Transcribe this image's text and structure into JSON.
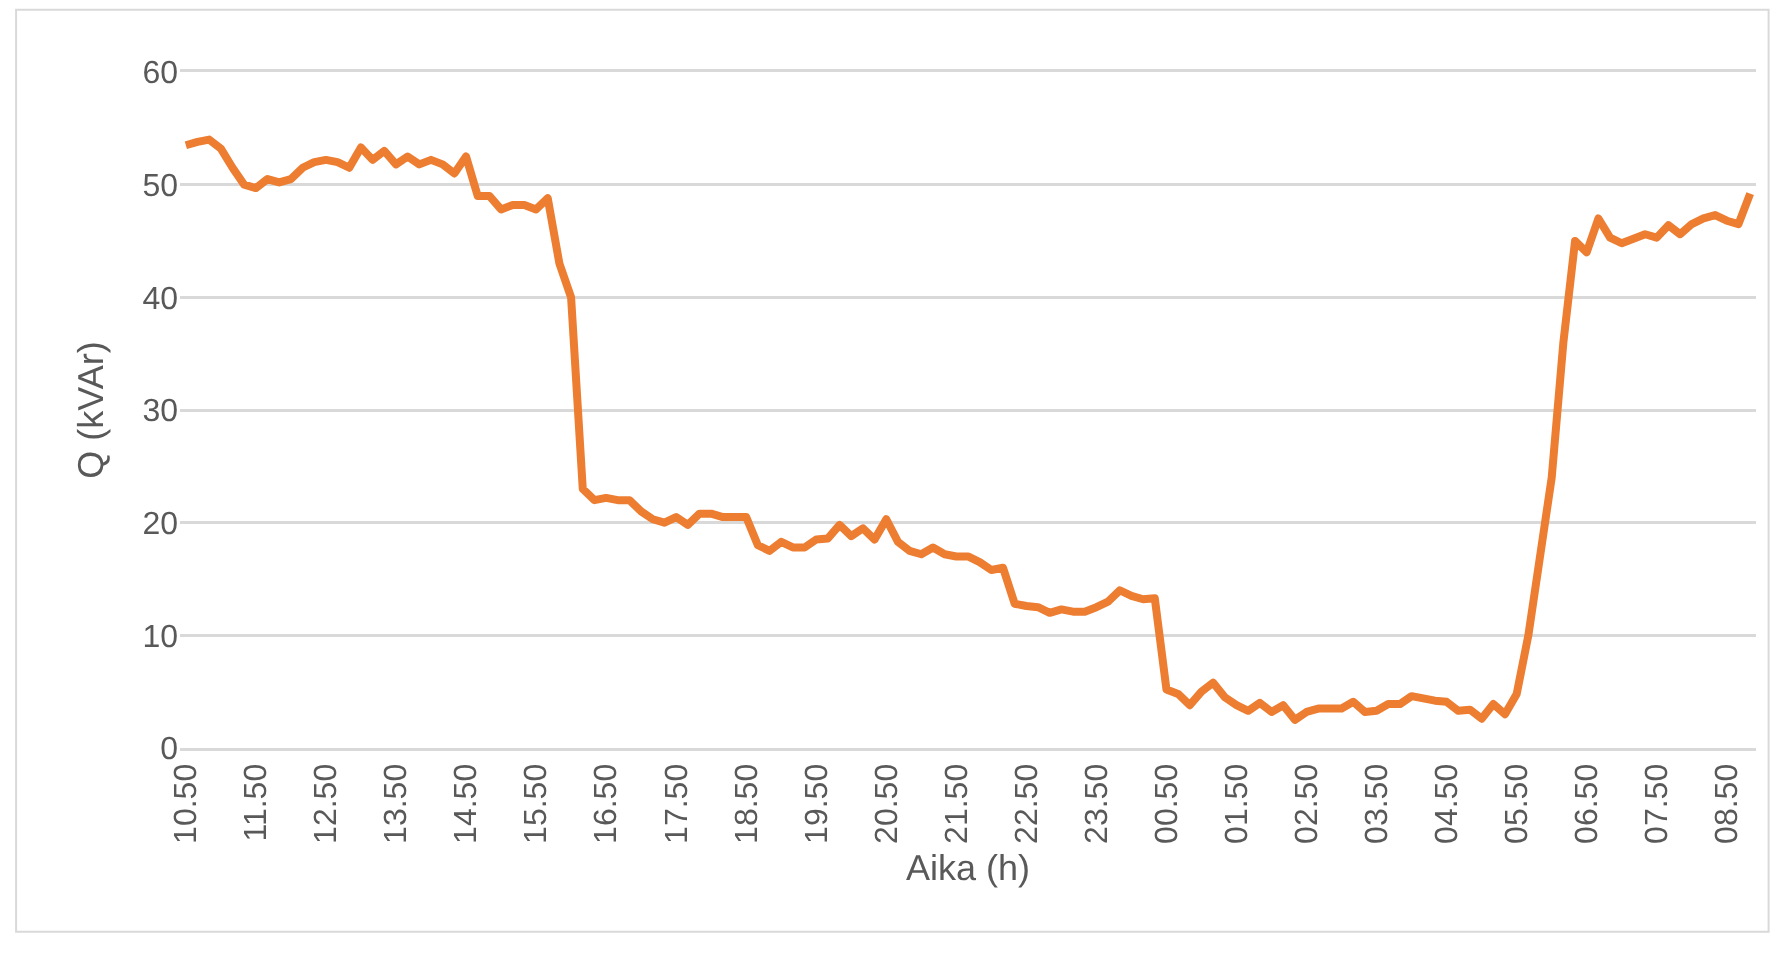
{
  "chart_data": {
    "type": "line",
    "xlabel": "Aika (h)",
    "ylabel": "Q (kVAr)",
    "categories": [
      "10.50",
      null,
      null,
      null,
      null,
      null,
      "11.50",
      null,
      null,
      null,
      null,
      null,
      "12.50",
      null,
      null,
      null,
      null,
      null,
      "13.50",
      null,
      null,
      null,
      null,
      null,
      "14.50",
      null,
      null,
      null,
      null,
      null,
      "15.50",
      null,
      null,
      null,
      null,
      null,
      "16.50",
      null,
      null,
      null,
      null,
      null,
      "17.50",
      null,
      null,
      null,
      null,
      null,
      "18.50",
      null,
      null,
      null,
      null,
      null,
      "19.50",
      null,
      null,
      null,
      null,
      null,
      "20.50",
      null,
      null,
      null,
      null,
      null,
      "21.50",
      null,
      null,
      null,
      null,
      null,
      "22.50",
      null,
      null,
      null,
      null,
      null,
      "23.50",
      null,
      null,
      null,
      null,
      null,
      "00.50",
      null,
      null,
      null,
      null,
      null,
      "01.50",
      null,
      null,
      null,
      null,
      null,
      "02.50",
      null,
      null,
      null,
      null,
      null,
      "03.50",
      null,
      null,
      null,
      null,
      null,
      "04.50",
      null,
      null,
      null,
      null,
      null,
      "05.50",
      null,
      null,
      null,
      null,
      null,
      "06.50",
      null,
      null,
      null,
      null,
      null,
      "07.50",
      null,
      null,
      null,
      null,
      null,
      "08.50",
      null,
      null
    ],
    "series": [
      {
        "color": "#ed7d31",
        "values": [
          53.5,
          53.8,
          54,
          53.2,
          51.5,
          50,
          49.7,
          50.5,
          50.2,
          50.5,
          51.5,
          52,
          52.2,
          52,
          51.5,
          53.3,
          52.2,
          53,
          51.8,
          52.5,
          51.8,
          52.2,
          51.8,
          51,
          52.5,
          49,
          49,
          47.8,
          48.2,
          48.2,
          47.8,
          48.8,
          43,
          40,
          23,
          22,
          22.2,
          22,
          22,
          21,
          20.3,
          20,
          20.5,
          19.8,
          20.8,
          20.8,
          20.5,
          20.5,
          20.5,
          18,
          17.5,
          18.3,
          17.8,
          17.8,
          18.5,
          18.6,
          19.8,
          18.8,
          19.5,
          18.5,
          20.3,
          18.3,
          17.5,
          17.2,
          17.8,
          17.2,
          17,
          17,
          16.5,
          15.8,
          16,
          12.8,
          12.6,
          12.5,
          12,
          12.3,
          12.1,
          12.1,
          12.5,
          13,
          14,
          13.5,
          13.2,
          13.3,
          5.2,
          4.8,
          3.8,
          5,
          5.8,
          4.5,
          3.8,
          3.3,
          4,
          3.2,
          3.8,
          2.5,
          3.2,
          3.5,
          3.5,
          3.5,
          4.1,
          3.2,
          3.3,
          3.9,
          3.9,
          4.6,
          4.4,
          4.2,
          4.1,
          3.3,
          3.4,
          2.6,
          3.9,
          3,
          4.8,
          10,
          17,
          24,
          36,
          45,
          44,
          47,
          45.3,
          44.8,
          45.2,
          45.6,
          45.3,
          46.4,
          45.6,
          46.5,
          47,
          47.3,
          46.8,
          46.5,
          49.2
        ]
      }
    ],
    "ylim": [
      0,
      60
    ],
    "yticks": [
      0,
      10,
      20,
      30,
      40,
      50,
      60
    ],
    "grid": "y",
    "marker": "none",
    "line_style": "solid"
  }
}
